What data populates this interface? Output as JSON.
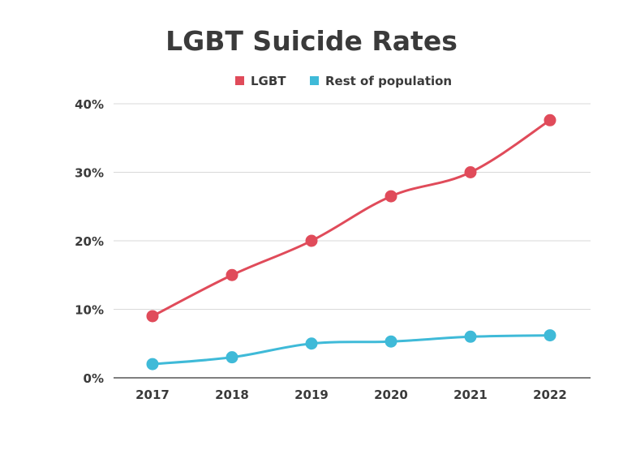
{
  "chart_data": {
    "type": "line",
    "title": "LGBT Suicide Rates",
    "xlabel": "",
    "ylabel": "",
    "categories": [
      "2017",
      "2018",
      "2019",
      "2020",
      "2021",
      "2022"
    ],
    "series": [
      {
        "name": "LGBT",
        "color": "#e04b5a",
        "values": [
          9,
          15,
          20,
          26.5,
          30,
          37.6
        ]
      },
      {
        "name": "Rest of population",
        "color": "#3fbad8",
        "values": [
          2,
          3,
          5,
          5.3,
          6,
          6.2
        ]
      }
    ],
    "ylim": [
      0,
      40
    ],
    "yticks": [
      0,
      10,
      20,
      30,
      40
    ],
    "ytick_labels": [
      "0%",
      "10%",
      "20%",
      "30%",
      "40%"
    ],
    "grid": true,
    "legend_position": "top-center",
    "gridline_color": "#d9d9d9",
    "axis_color": "#555555"
  }
}
